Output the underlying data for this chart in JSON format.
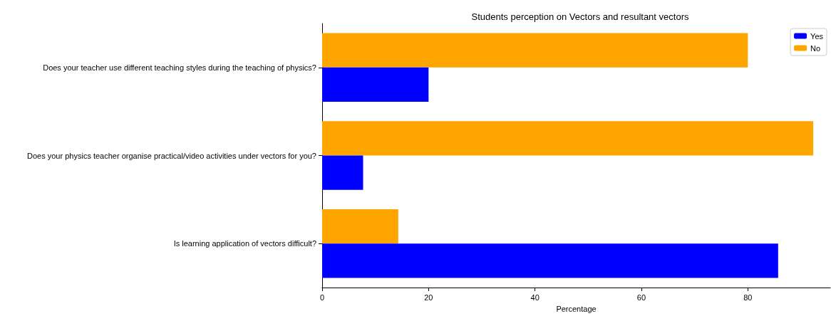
{
  "chart_data": {
    "type": "bar",
    "orientation": "horizontal",
    "title": "Students perception on Vectors and resultant vectors",
    "xlabel": "Percentage",
    "categories": [
      "Does your teacher use different teaching styles during the teaching of physics?",
      "Does your physics teacher organise practical/video activities under vectors for you?",
      "Is learning application of vectors difficult?"
    ],
    "series": [
      {
        "name": "Yes",
        "color": "#0000ff",
        "values": [
          20,
          7.7,
          85.7
        ]
      },
      {
        "name": "No",
        "color": "#ffa500",
        "values": [
          80,
          92.3,
          14.3
        ]
      }
    ],
    "xlim": [
      0,
      95.5
    ],
    "xticks": [
      0,
      20,
      40,
      60,
      80
    ],
    "grid": false,
    "legend": "top right"
  }
}
